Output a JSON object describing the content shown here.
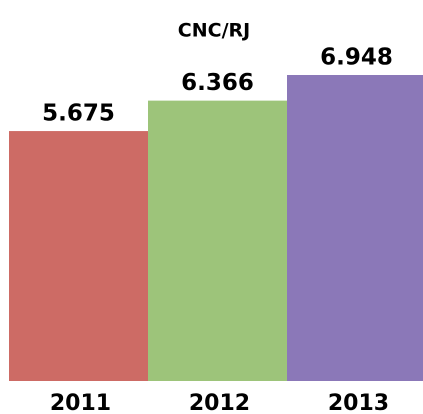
{
  "chart_data": {
    "type": "bar",
    "title": "CNC/RJ",
    "categories": [
      "2011",
      "2012",
      "2013"
    ],
    "values": [
      5.675,
      6.366,
      6.948
    ],
    "colors": [
      "#cd6b65",
      "#9dc47a",
      "#8b78b8"
    ]
  }
}
